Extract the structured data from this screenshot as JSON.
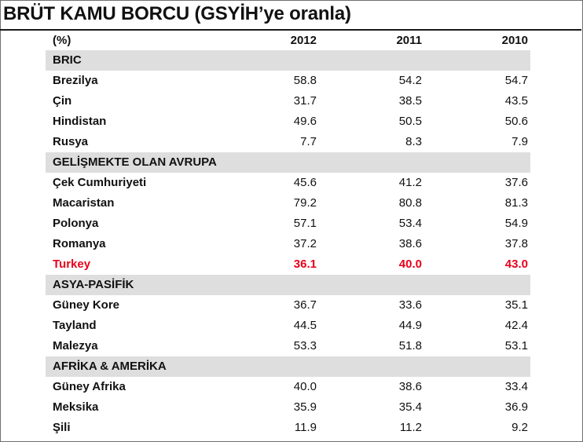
{
  "title": "BRÜT KAMU BORCU (GSYİH’ye oranla)",
  "header": {
    "unit": "(%)",
    "years": [
      "2012",
      "2011",
      "2010"
    ]
  },
  "rows": [
    {
      "kind": "section",
      "label": "BRIC"
    },
    {
      "kind": "data",
      "label": "Brezilya",
      "values": [
        "58.8",
        "54.2",
        "54.7"
      ]
    },
    {
      "kind": "data",
      "label": "Çin",
      "values": [
        "31.7",
        "38.5",
        "43.5"
      ]
    },
    {
      "kind": "data",
      "label": "Hindistan",
      "values": [
        "49.6",
        "50.5",
        "50.6"
      ]
    },
    {
      "kind": "data",
      "label": "Rusya",
      "values": [
        "7.7",
        "8.3",
        "7.9"
      ]
    },
    {
      "kind": "section",
      "label": "GELİŞMEKTE OLAN AVRUPA"
    },
    {
      "kind": "data",
      "label": "Çek Cumhuriyeti",
      "values": [
        "45.6",
        "41.2",
        "37.6"
      ]
    },
    {
      "kind": "data",
      "label": "Macaristan",
      "values": [
        "79.2",
        "80.8",
        "81.3"
      ]
    },
    {
      "kind": "data",
      "label": "Polonya",
      "values": [
        "57.1",
        "53.4",
        "54.9"
      ]
    },
    {
      "kind": "data",
      "label": "Romanya",
      "values": [
        "37.2",
        "38.6",
        "37.8"
      ]
    },
    {
      "kind": "data",
      "label": "Turkey",
      "values": [
        "36.1",
        "40.0",
        "43.0"
      ],
      "highlight": true
    },
    {
      "kind": "section",
      "label": "ASYA-PASİFİK"
    },
    {
      "kind": "data",
      "label": "Güney Kore",
      "values": [
        "36.7",
        "33.6",
        "35.1"
      ]
    },
    {
      "kind": "data",
      "label": "Tayland",
      "values": [
        "44.5",
        "44.9",
        "42.4"
      ]
    },
    {
      "kind": "data",
      "label": "Malezya",
      "values": [
        "53.3",
        "51.8",
        "53.1"
      ]
    },
    {
      "kind": "section",
      "label": "AFRİKA & AMERİKA"
    },
    {
      "kind": "data",
      "label": "Güney Afrika",
      "values": [
        "40.0",
        "38.6",
        "33.4"
      ]
    },
    {
      "kind": "data",
      "label": "Meksika",
      "values": [
        "35.9",
        "35.4",
        "36.9"
      ]
    },
    {
      "kind": "data",
      "label": "Şili",
      "values": [
        "11.9",
        "11.2",
        "9.2"
      ]
    }
  ],
  "colors": {
    "section_band": "#dedede",
    "highlight_text": "#e8001b",
    "text": "#111111"
  }
}
